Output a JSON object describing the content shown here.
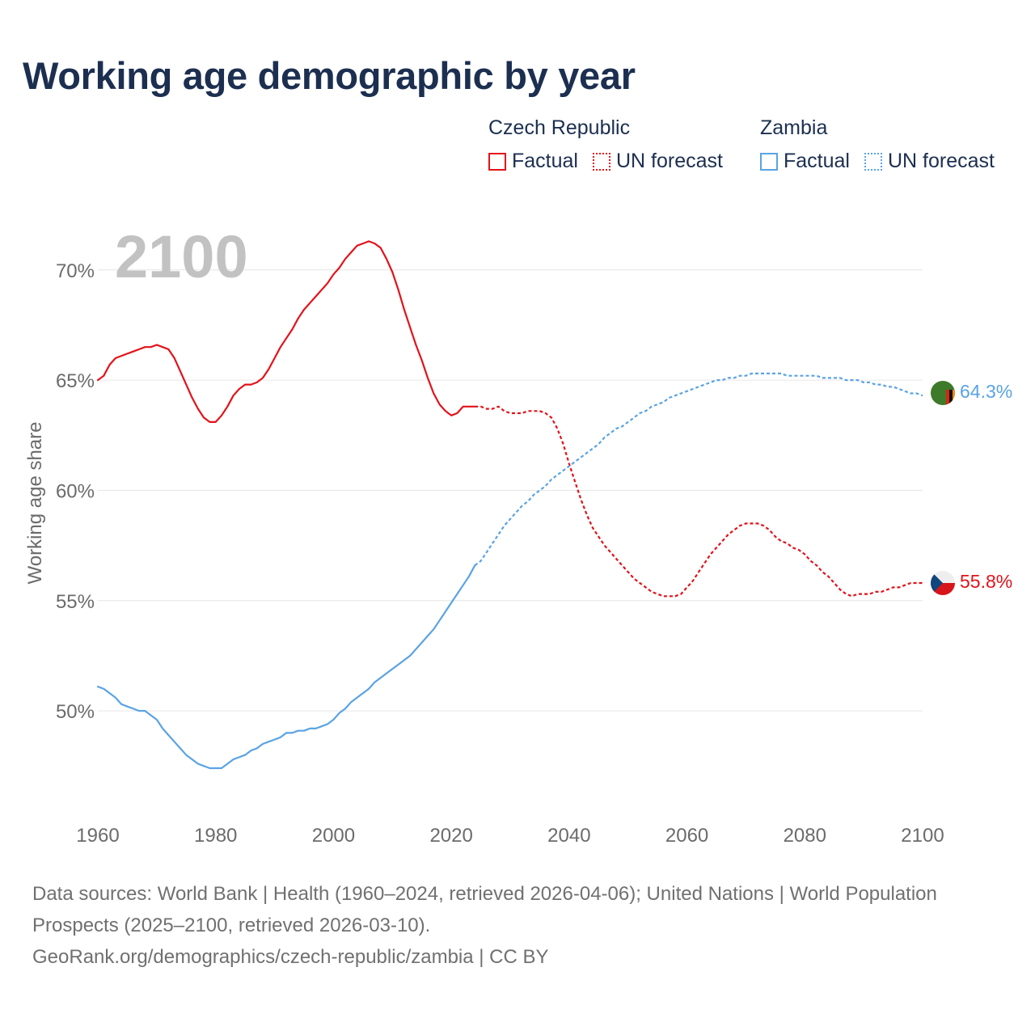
{
  "title": "Working age demographic by year",
  "year_label": "2100",
  "legend": {
    "czech": {
      "name": "Czech Republic",
      "factual": "Factual",
      "forecast": "UN forecast",
      "color": "#e3121a"
    },
    "zambia": {
      "name": "Zambia",
      "factual": "Factual",
      "forecast": "UN forecast",
      "color": "#5aa3e3"
    }
  },
  "footer": {
    "sources": "Data sources: World Bank | Health (1960–2024, retrieved 2026-04-06); United Nations | World Population Prospects (2025–2100, retrieved 2026-03-10).",
    "link": "GeoRank.org/demographics/czech-republic/zambia | CC BY"
  },
  "chart_data": {
    "type": "line",
    "title": "Working age demographic by year",
    "xlabel": "",
    "ylabel": "Working age share",
    "xlim": [
      1960,
      2100
    ],
    "ylim": [
      45.2,
      73
    ],
    "x_ticks": [
      1960,
      1980,
      2000,
      2020,
      2040,
      2060,
      2080,
      2100
    ],
    "y_ticks": [
      50,
      55,
      60,
      65,
      70
    ],
    "y_tick_labels": [
      "50%",
      "55%",
      "60%",
      "65%",
      "70%"
    ],
    "forecast_start": 2024,
    "grid": true,
    "series": [
      {
        "name": "Czech Republic",
        "color": "#e3121a",
        "end_label": "55.8%",
        "points": [
          [
            1960,
            65.0
          ],
          [
            1961,
            65.2
          ],
          [
            1962,
            65.7
          ],
          [
            1963,
            66.0
          ],
          [
            1964,
            66.1
          ],
          [
            1965,
            66.2
          ],
          [
            1966,
            66.3
          ],
          [
            1967,
            66.4
          ],
          [
            1968,
            66.5
          ],
          [
            1969,
            66.5
          ],
          [
            1970,
            66.6
          ],
          [
            1971,
            66.5
          ],
          [
            1972,
            66.4
          ],
          [
            1973,
            66.0
          ],
          [
            1974,
            65.4
          ],
          [
            1975,
            64.8
          ],
          [
            1976,
            64.2
          ],
          [
            1977,
            63.7
          ],
          [
            1978,
            63.3
          ],
          [
            1979,
            63.1
          ],
          [
            1980,
            63.1
          ],
          [
            1981,
            63.4
          ],
          [
            1982,
            63.8
          ],
          [
            1983,
            64.3
          ],
          [
            1984,
            64.6
          ],
          [
            1985,
            64.8
          ],
          [
            1986,
            64.8
          ],
          [
            1987,
            64.9
          ],
          [
            1988,
            65.1
          ],
          [
            1989,
            65.5
          ],
          [
            1990,
            66.0
          ],
          [
            1991,
            66.5
          ],
          [
            1992,
            66.9
          ],
          [
            1993,
            67.3
          ],
          [
            1994,
            67.8
          ],
          [
            1995,
            68.2
          ],
          [
            1996,
            68.5
          ],
          [
            1997,
            68.8
          ],
          [
            1998,
            69.1
          ],
          [
            1999,
            69.4
          ],
          [
            2000,
            69.8
          ],
          [
            2001,
            70.1
          ],
          [
            2002,
            70.5
          ],
          [
            2003,
            70.8
          ],
          [
            2004,
            71.1
          ],
          [
            2005,
            71.2
          ],
          [
            2006,
            71.3
          ],
          [
            2007,
            71.2
          ],
          [
            2008,
            71.0
          ],
          [
            2009,
            70.5
          ],
          [
            2010,
            69.9
          ],
          [
            2011,
            69.1
          ],
          [
            2012,
            68.2
          ],
          [
            2013,
            67.4
          ],
          [
            2014,
            66.6
          ],
          [
            2015,
            65.9
          ],
          [
            2016,
            65.1
          ],
          [
            2017,
            64.4
          ],
          [
            2018,
            63.9
          ],
          [
            2019,
            63.6
          ],
          [
            2020,
            63.4
          ],
          [
            2021,
            63.5
          ],
          [
            2022,
            63.8
          ],
          [
            2023,
            63.8
          ],
          [
            2024,
            63.8
          ],
          [
            2025,
            63.8
          ],
          [
            2026,
            63.7
          ],
          [
            2027,
            63.7
          ],
          [
            2028,
            63.8
          ],
          [
            2029,
            63.6
          ],
          [
            2030,
            63.5
          ],
          [
            2031,
            63.5
          ],
          [
            2032,
            63.5
          ],
          [
            2033,
            63.6
          ],
          [
            2034,
            63.6
          ],
          [
            2035,
            63.6
          ],
          [
            2036,
            63.5
          ],
          [
            2037,
            63.3
          ],
          [
            2038,
            62.8
          ],
          [
            2039,
            62.1
          ],
          [
            2040,
            61.2
          ],
          [
            2041,
            60.4
          ],
          [
            2042,
            59.6
          ],
          [
            2043,
            58.9
          ],
          [
            2044,
            58.3
          ],
          [
            2045,
            57.9
          ],
          [
            2046,
            57.5
          ],
          [
            2047,
            57.2
          ],
          [
            2048,
            56.9
          ],
          [
            2049,
            56.6
          ],
          [
            2050,
            56.3
          ],
          [
            2051,
            56.0
          ],
          [
            2052,
            55.8
          ],
          [
            2053,
            55.6
          ],
          [
            2054,
            55.4
          ],
          [
            2055,
            55.3
          ],
          [
            2056,
            55.2
          ],
          [
            2057,
            55.2
          ],
          [
            2058,
            55.2
          ],
          [
            2059,
            55.3
          ],
          [
            2060,
            55.6
          ],
          [
            2061,
            55.9
          ],
          [
            2062,
            56.3
          ],
          [
            2063,
            56.7
          ],
          [
            2064,
            57.1
          ],
          [
            2065,
            57.4
          ],
          [
            2066,
            57.7
          ],
          [
            2067,
            58.0
          ],
          [
            2068,
            58.2
          ],
          [
            2069,
            58.4
          ],
          [
            2070,
            58.5
          ],
          [
            2071,
            58.5
          ],
          [
            2072,
            58.5
          ],
          [
            2073,
            58.4
          ],
          [
            2074,
            58.2
          ],
          [
            2075,
            57.9
          ],
          [
            2076,
            57.7
          ],
          [
            2077,
            57.6
          ],
          [
            2078,
            57.4
          ],
          [
            2079,
            57.3
          ],
          [
            2080,
            57.1
          ],
          [
            2081,
            56.8
          ],
          [
            2082,
            56.6
          ],
          [
            2083,
            56.3
          ],
          [
            2084,
            56.1
          ],
          [
            2085,
            55.8
          ],
          [
            2086,
            55.5
          ],
          [
            2087,
            55.3
          ],
          [
            2088,
            55.2
          ],
          [
            2089,
            55.3
          ],
          [
            2090,
            55.3
          ],
          [
            2091,
            55.3
          ],
          [
            2092,
            55.4
          ],
          [
            2093,
            55.4
          ],
          [
            2094,
            55.5
          ],
          [
            2095,
            55.6
          ],
          [
            2096,
            55.6
          ],
          [
            2097,
            55.7
          ],
          [
            2098,
            55.8
          ],
          [
            2099,
            55.8
          ],
          [
            2100,
            55.8
          ]
        ]
      },
      {
        "name": "Zambia",
        "color": "#5aa3e3",
        "end_label": "64.3%",
        "points": [
          [
            1960,
            51.1
          ],
          [
            1961,
            51.0
          ],
          [
            1962,
            50.8
          ],
          [
            1963,
            50.6
          ],
          [
            1964,
            50.3
          ],
          [
            1965,
            50.2
          ],
          [
            1966,
            50.1
          ],
          [
            1967,
            50.0
          ],
          [
            1968,
            50.0
          ],
          [
            1969,
            49.8
          ],
          [
            1970,
            49.6
          ],
          [
            1971,
            49.2
          ],
          [
            1972,
            48.9
          ],
          [
            1973,
            48.6
          ],
          [
            1974,
            48.3
          ],
          [
            1975,
            48.0
          ],
          [
            1976,
            47.8
          ],
          [
            1977,
            47.6
          ],
          [
            1978,
            47.5
          ],
          [
            1979,
            47.4
          ],
          [
            1980,
            47.4
          ],
          [
            1981,
            47.4
          ],
          [
            1982,
            47.6
          ],
          [
            1983,
            47.8
          ],
          [
            1984,
            47.9
          ],
          [
            1985,
            48.0
          ],
          [
            1986,
            48.2
          ],
          [
            1987,
            48.3
          ],
          [
            1988,
            48.5
          ],
          [
            1989,
            48.6
          ],
          [
            1990,
            48.7
          ],
          [
            1991,
            48.8
          ],
          [
            1992,
            49.0
          ],
          [
            1993,
            49.0
          ],
          [
            1994,
            49.1
          ],
          [
            1995,
            49.1
          ],
          [
            1996,
            49.2
          ],
          [
            1997,
            49.2
          ],
          [
            1998,
            49.3
          ],
          [
            1999,
            49.4
          ],
          [
            2000,
            49.6
          ],
          [
            2001,
            49.9
          ],
          [
            2002,
            50.1
          ],
          [
            2003,
            50.4
          ],
          [
            2004,
            50.6
          ],
          [
            2005,
            50.8
          ],
          [
            2006,
            51.0
          ],
          [
            2007,
            51.3
          ],
          [
            2008,
            51.5
          ],
          [
            2009,
            51.7
          ],
          [
            2010,
            51.9
          ],
          [
            2011,
            52.1
          ],
          [
            2012,
            52.3
          ],
          [
            2013,
            52.5
          ],
          [
            2014,
            52.8
          ],
          [
            2015,
            53.1
          ],
          [
            2016,
            53.4
          ],
          [
            2017,
            53.7
          ],
          [
            2018,
            54.1
          ],
          [
            2019,
            54.5
          ],
          [
            2020,
            54.9
          ],
          [
            2021,
            55.3
          ],
          [
            2022,
            55.7
          ],
          [
            2023,
            56.1
          ],
          [
            2024,
            56.6
          ],
          [
            2025,
            56.8
          ],
          [
            2026,
            57.2
          ],
          [
            2027,
            57.6
          ],
          [
            2028,
            58.0
          ],
          [
            2029,
            58.4
          ],
          [
            2030,
            58.7
          ],
          [
            2031,
            59.0
          ],
          [
            2032,
            59.3
          ],
          [
            2033,
            59.5
          ],
          [
            2034,
            59.8
          ],
          [
            2035,
            60.0
          ],
          [
            2036,
            60.2
          ],
          [
            2037,
            60.5
          ],
          [
            2038,
            60.7
          ],
          [
            2039,
            60.9
          ],
          [
            2040,
            61.1
          ],
          [
            2041,
            61.3
          ],
          [
            2042,
            61.5
          ],
          [
            2043,
            61.7
          ],
          [
            2044,
            61.9
          ],
          [
            2045,
            62.1
          ],
          [
            2046,
            62.4
          ],
          [
            2047,
            62.6
          ],
          [
            2048,
            62.8
          ],
          [
            2049,
            62.9
          ],
          [
            2050,
            63.1
          ],
          [
            2051,
            63.3
          ],
          [
            2052,
            63.5
          ],
          [
            2053,
            63.6
          ],
          [
            2054,
            63.8
          ],
          [
            2055,
            63.9
          ],
          [
            2056,
            64.0
          ],
          [
            2057,
            64.2
          ],
          [
            2058,
            64.3
          ],
          [
            2059,
            64.4
          ],
          [
            2060,
            64.5
          ],
          [
            2061,
            64.6
          ],
          [
            2062,
            64.7
          ],
          [
            2063,
            64.8
          ],
          [
            2064,
            64.9
          ],
          [
            2065,
            65.0
          ],
          [
            2066,
            65.0
          ],
          [
            2067,
            65.1
          ],
          [
            2068,
            65.1
          ],
          [
            2069,
            65.2
          ],
          [
            2070,
            65.2
          ],
          [
            2071,
            65.3
          ],
          [
            2072,
            65.3
          ],
          [
            2073,
            65.3
          ],
          [
            2074,
            65.3
          ],
          [
            2075,
            65.3
          ],
          [
            2076,
            65.3
          ],
          [
            2077,
            65.2
          ],
          [
            2078,
            65.2
          ],
          [
            2079,
            65.2
          ],
          [
            2080,
            65.2
          ],
          [
            2081,
            65.2
          ],
          [
            2082,
            65.2
          ],
          [
            2083,
            65.1
          ],
          [
            2084,
            65.1
          ],
          [
            2085,
            65.1
          ],
          [
            2086,
            65.1
          ],
          [
            2087,
            65.0
          ],
          [
            2088,
            65.0
          ],
          [
            2089,
            65.0
          ],
          [
            2090,
            64.9
          ],
          [
            2091,
            64.9
          ],
          [
            2092,
            64.8
          ],
          [
            2093,
            64.8
          ],
          [
            2094,
            64.7
          ],
          [
            2095,
            64.7
          ],
          [
            2096,
            64.6
          ],
          [
            2097,
            64.5
          ],
          [
            2098,
            64.4
          ],
          [
            2099,
            64.4
          ],
          [
            2100,
            64.3
          ]
        ]
      }
    ]
  }
}
